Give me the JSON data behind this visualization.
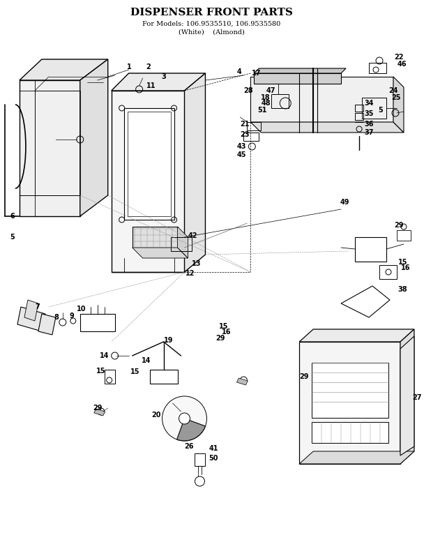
{
  "title": "DISPENSER FRONT PARTS",
  "subtitle1": "For Models: 106.9535510, 106.9535580",
  "subtitle2": "(White)    (Almond)",
  "bg_color": "#ffffff",
  "line_color": "#000000",
  "title_fontsize": 11,
  "subtitle_fontsize": 7,
  "label_fontsize": 7,
  "fig_width": 6.08,
  "fig_height": 7.67,
  "dpi": 100
}
